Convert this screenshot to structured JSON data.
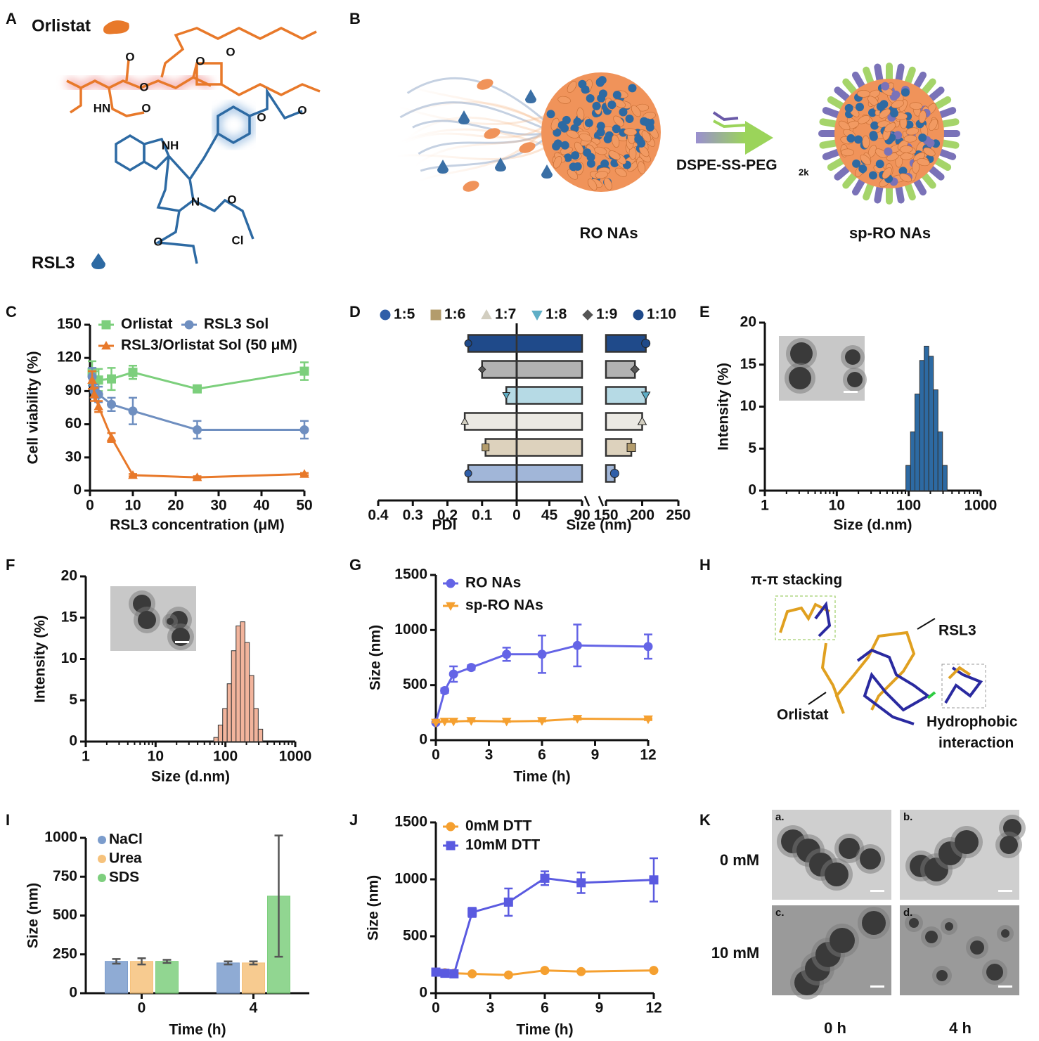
{
  "figure": {
    "labels": [
      "A",
      "B",
      "C",
      "D",
      "E",
      "F",
      "G",
      "H",
      "I",
      "J",
      "K"
    ],
    "a": {
      "orlistat": "Orlistat",
      "rsl3": "RSL3",
      "atoms": [
        "O",
        "O",
        "HN",
        "O",
        "O",
        "O",
        "NH",
        "O",
        "O",
        "N",
        "O",
        "O",
        "Cl"
      ]
    },
    "b": {
      "reagent": "DSPE-SS-PEG",
      "reagent_sub": "2k",
      "ro": "RO NAs",
      "sp_ro": "sp-RO NAs"
    },
    "h": {
      "stacking": "π-π stacking",
      "rsl3": "RSL3",
      "orlistat": "Orlistat",
      "hydrophobic": "Hydrophobic",
      "interaction": "interaction"
    },
    "k": {
      "rows": [
        "0 mM",
        "10 mM"
      ],
      "cols": [
        "0 h",
        "4 h"
      ],
      "images": [
        "a.",
        "b.",
        "c.",
        "d."
      ]
    }
  },
  "chart_data": [
    {
      "type": "line",
      "xlabel": "RSL3 concentration (μM)",
      "ylabel": "Cell viability (%)",
      "x": [
        0.5,
        1,
        2,
        5,
        10,
        25,
        50
      ],
      "xlim": [
        0,
        50
      ],
      "xticks": [
        0,
        10,
        20,
        30,
        40,
        50
      ],
      "ylim": [
        0,
        150
      ],
      "yticks": [
        0,
        30,
        60,
        90,
        120,
        150
      ],
      "series": [
        {
          "name": "Orlistat",
          "color": "#7ccf7c",
          "marker": "square",
          "values": [
            107,
            100,
            100,
            101,
            107,
            92,
            108
          ],
          "errors": [
            10,
            8,
            10,
            10,
            6,
            3,
            8
          ]
        },
        {
          "name": "RSL3 Sol",
          "color": "#6f8fc0",
          "marker": "circle",
          "values": [
            103,
            90,
            87,
            78,
            72,
            55,
            55
          ],
          "errors": [
            8,
            6,
            7,
            6,
            12,
            8,
            8
          ]
        },
        {
          "name": "RSL3/Orlistat Sol (50 μM)",
          "color": "#e8792a",
          "marker": "triangle",
          "values": [
            100,
            87,
            76,
            48,
            14,
            12,
            15
          ],
          "errors": [
            8,
            6,
            5,
            4,
            1,
            1,
            1
          ]
        }
      ]
    },
    {
      "type": "diverging",
      "categories": [
        "1:5",
        "1:6",
        "1:7",
        "1:8",
        "1:9",
        "1:10"
      ],
      "colors": [
        "#2f5ea8",
        "#b39c6c",
        "#d2cec0",
        "#5eaec6",
        "#555555",
        "#1f4a8a"
      ],
      "markers": [
        "circle",
        "square",
        "triangle",
        "triangle-down",
        "diamond",
        "circle"
      ],
      "pdi_label": "PDI",
      "pdi_lim": [
        0.4,
        0
      ],
      "pdi_ticks": [
        0.4,
        0.3,
        0.2,
        0.1
      ],
      "pdi": [
        0.14,
        0.09,
        0.15,
        0.03,
        0.1,
        0.14
      ],
      "size_label": "Size (nm)",
      "size_segments": [
        [
          0,
          90
        ],
        [
          150,
          250
        ]
      ],
      "size_ticks": [
        0,
        45,
        90,
        150,
        200,
        250
      ],
      "size": [
        162,
        185,
        200,
        205,
        190,
        205
      ]
    },
    {
      "type": "histogram",
      "xlabel": "Size (d.nm)",
      "ylabel": "Intensity (%)",
      "color": "#2d6aa3",
      "xscale": "log",
      "bins": [
        91.3,
        106,
        122,
        142,
        164,
        190,
        220,
        255,
        295,
        342
      ],
      "values": [
        3,
        7,
        11.5,
        15.5,
        17.2,
        16,
        12,
        7,
        3
      ],
      "xlim": [
        1,
        1000
      ],
      "xticks": [
        1,
        10,
        100,
        1000
      ],
      "ylim": [
        0,
        20
      ],
      "yticks": [
        0,
        5,
        10,
        15,
        20
      ]
    },
    {
      "type": "histogram",
      "xlabel": "Size (d.nm)",
      "ylabel": "Intensity (%)",
      "color": "#f2b49c",
      "xscale": "log",
      "bins": [
        68.1,
        78.8,
        91.3,
        106,
        122,
        142,
        164,
        190,
        220,
        255,
        295,
        342
      ],
      "values": [
        0.5,
        2,
        4,
        7,
        11,
        14,
        14.5,
        12,
        8,
        4,
        1.5
      ],
      "xlim": [
        1,
        1000
      ],
      "xticks": [
        1,
        10,
        100,
        1000
      ],
      "ylim": [
        0,
        20
      ],
      "yticks": [
        0,
        5,
        10,
        15,
        20
      ]
    },
    {
      "type": "line",
      "xlabel": "Time (h)",
      "ylabel": "Size (nm)",
      "x": [
        0,
        0.5,
        1,
        2,
        4,
        6,
        8,
        12
      ],
      "xlim": [
        0,
        12
      ],
      "xticks": [
        0,
        3,
        6,
        9,
        12
      ],
      "ylim": [
        0,
        1500
      ],
      "yticks": [
        0,
        500,
        1000,
        1500
      ],
      "series": [
        {
          "name": "RO NAs",
          "color": "#6464e6",
          "marker": "circle",
          "values": [
            160,
            450,
            600,
            660,
            780,
            780,
            860,
            850
          ],
          "errors": [
            0,
            20,
            70,
            20,
            60,
            170,
            190,
            110
          ]
        },
        {
          "name": "sp-RO NAs",
          "color": "#f5a030",
          "marker": "triangle-down",
          "values": [
            160,
            170,
            170,
            175,
            170,
            175,
            195,
            190
          ],
          "errors": [
            0,
            5,
            5,
            5,
            5,
            5,
            8,
            8
          ]
        }
      ]
    },
    {
      "type": "bar",
      "xlabel": "Time (h)",
      "ylabel": "Size (nm)",
      "categories": [
        "0",
        "4"
      ],
      "ylim": [
        0,
        1000
      ],
      "yticks": [
        0,
        250,
        500,
        750,
        1000
      ],
      "series": [
        {
          "name": "NaCl",
          "color": "#7b9ccc",
          "values": [
            205,
            195
          ],
          "errors": [
            15,
            10
          ]
        },
        {
          "name": "Urea",
          "color": "#f6c27c",
          "values": [
            205,
            195
          ],
          "errors": [
            20,
            10
          ]
        },
        {
          "name": "SDS",
          "color": "#7ecf7e",
          "values": [
            205,
            625
          ],
          "errors": [
            10,
            390
          ]
        }
      ]
    },
    {
      "type": "line",
      "xlabel": "Time (h)",
      "ylabel": "Size (nm)",
      "x": [
        0,
        0.5,
        1,
        2,
        4,
        6,
        8,
        12
      ],
      "xlim": [
        0,
        12
      ],
      "xticks": [
        0,
        3,
        6,
        9,
        12
      ],
      "ylim": [
        0,
        1500
      ],
      "yticks": [
        0,
        500,
        1000,
        1500
      ],
      "series": [
        {
          "name": "0mM DTT",
          "color": "#f5a030",
          "marker": "circle",
          "values": [
            185,
            180,
            175,
            170,
            160,
            200,
            190,
            200
          ],
          "errors": [
            5,
            5,
            5,
            5,
            5,
            8,
            8,
            8
          ]
        },
        {
          "name": "10mM DTT",
          "color": "#5a5ae0",
          "marker": "square",
          "values": [
            185,
            175,
            170,
            710,
            800,
            1010,
            970,
            995
          ],
          "errors": [
            10,
            10,
            10,
            40,
            120,
            60,
            90,
            190
          ]
        }
      ]
    }
  ]
}
